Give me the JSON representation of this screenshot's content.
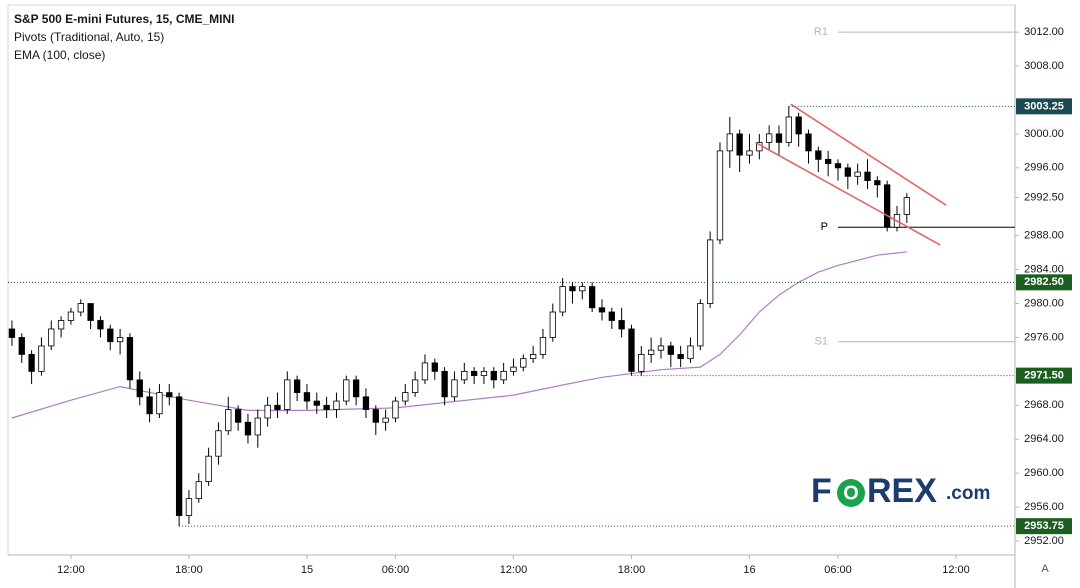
{
  "chart_data": {
    "type": "candlestick",
    "title": "S&P 500 E-mini Futures, 15, CME_MINI",
    "indicators": [
      "Pivots (Traditional, Auto, 15)",
      "EMA (100, close)"
    ],
    "x": [
      -6,
      -5,
      -4,
      -3,
      -2,
      -1,
      0,
      1,
      2,
      3,
      4,
      5,
      6,
      7,
      8,
      9,
      10,
      11,
      12,
      13,
      14,
      15,
      16,
      17,
      18,
      19,
      20,
      21,
      22,
      23,
      24,
      25,
      26,
      27,
      28,
      29,
      30,
      31,
      32,
      33,
      34,
      35,
      36,
      37,
      38,
      39,
      40,
      41,
      42,
      43,
      44,
      45,
      46,
      47,
      48,
      49,
      50,
      51,
      52,
      53,
      54,
      55,
      56,
      57,
      58,
      59,
      60,
      61,
      62,
      63,
      64,
      65,
      66,
      67,
      68,
      69,
      70,
      71,
      72,
      73,
      74,
      75,
      76,
      77,
      78,
      79,
      80,
      81,
      82,
      83,
      84,
      85
    ],
    "open": [
      2977,
      2976,
      2974,
      2972,
      2975,
      2977,
      2978,
      2979,
      2980,
      2978,
      2977,
      2975.5,
      2976,
      2971,
      2969,
      2967,
      2969.5,
      2969,
      2955,
      2957,
      2959,
      2962,
      2965,
      2967.5,
      2966,
      2964.5,
      2966.5,
      2968,
      2967.5,
      2971,
      2969.5,
      2968.5,
      2968,
      2967.5,
      2968.5,
      2971,
      2969,
      2967.5,
      2966,
      2966.5,
      2968.5,
      2969.5,
      2971,
      2973,
      2972,
      2969,
      2971,
      2972,
      2971.5,
      2972,
      2971,
      2972,
      2972.5,
      2973.5,
      2974,
      2976,
      2979,
      2982,
      2981.5,
      2982,
      2979.5,
      2979,
      2978,
      2977,
      2972,
      2974,
      2974.5,
      2975,
      2974,
      2973.5,
      2975,
      2980,
      2987.5,
      2998,
      3000,
      2997.5,
      2998,
      2999,
      3000,
      2999,
      3002,
      3000,
      2998,
      2997,
      2996.5,
      2996,
      2995,
      2995.5,
      2994.5,
      2994,
      2989,
      2990.5
    ],
    "high": [
      2978,
      2976.5,
      2974.5,
      2976,
      2978,
      2978.5,
      2979.5,
      2980.5,
      2980,
      2978.5,
      2977.5,
      2977,
      2976.5,
      2972,
      2970,
      2970.5,
      2970.5,
      2969.5,
      2958,
      2960,
      2963,
      2966,
      2969,
      2968,
      2967,
      2967.5,
      2969,
      2969.5,
      2972,
      2971.5,
      2970.5,
      2969.5,
      2969,
      2969.5,
      2971.5,
      2971.5,
      2970,
      2968,
      2967.5,
      2969,
      2970.5,
      2972,
      2974,
      2973.5,
      2972.5,
      2972,
      2973,
      2972.5,
      2972.5,
      2972.5,
      2973,
      2973.5,
      2974,
      2975,
      2977,
      2980,
      2983,
      2982.5,
      2982.5,
      2982.5,
      2980.5,
      2979.5,
      2979.5,
      2977.5,
      2975,
      2976,
      2976,
      2975.5,
      2975,
      2976,
      2980.5,
      2988.5,
      2999,
      3002,
      3000.5,
      3000,
      3000,
      3001,
      3001,
      3003.25,
      3002.5,
      3000.5,
      2998.5,
      2998,
      2997,
      2996.5,
      2996.5,
      2997,
      2995,
      2994.5,
      2991.5,
      2993
    ],
    "low": [
      2975,
      2973,
      2970.5,
      2971.5,
      2974.5,
      2976,
      2977.5,
      2978.5,
      2977,
      2976,
      2974.5,
      2974,
      2970,
      2968,
      2966,
      2966.5,
      2968,
      2953.75,
      2954,
      2956.5,
      2958.5,
      2961,
      2964.5,
      2965,
      2963.5,
      2963,
      2965.5,
      2966.5,
      2967,
      2968.5,
      2967.5,
      2967,
      2966.5,
      2966.5,
      2968,
      2968,
      2966.5,
      2964.5,
      2965,
      2966,
      2968,
      2969,
      2970.5,
      2971,
      2968,
      2968.5,
      2970.5,
      2970.5,
      2970.5,
      2970,
      2970.5,
      2971.5,
      2972,
      2973,
      2973.5,
      2975.5,
      2978.5,
      2980,
      2980.5,
      2979,
      2978,
      2977,
      2976,
      2971.5,
      2971.5,
      2973,
      2973.5,
      2972.5,
      2972.5,
      2973,
      2974.5,
      2979.5,
      2987,
      2996,
      2995.5,
      2996.5,
      2997,
      2998,
      2997.5,
      2998.5,
      2998.5,
      2996.5,
      2995.5,
      2995,
      2994.5,
      2993.5,
      2994,
      2993.5,
      2992.5,
      2988.5,
      2988.5,
      2989.5
    ],
    "close": [
      2976,
      2974,
      2972,
      2975,
      2977,
      2978,
      2979,
      2980,
      2978,
      2977,
      2975.5,
      2976,
      2971,
      2969,
      2967,
      2969.5,
      2969,
      2955,
      2957,
      2959,
      2962,
      2965,
      2967.5,
      2966,
      2964.5,
      2966.5,
      2968,
      2967.5,
      2971,
      2969.5,
      2968.5,
      2968,
      2967.5,
      2968.5,
      2971,
      2969,
      2967.5,
      2966,
      2966.5,
      2968.5,
      2969.5,
      2971,
      2973,
      2972,
      2969,
      2971,
      2972,
      2971.5,
      2972,
      2971,
      2972,
      2972.5,
      2973.5,
      2974,
      2976,
      2979,
      2982,
      2981.5,
      2982,
      2979.5,
      2979,
      2978,
      2977,
      2972,
      2974,
      2974.5,
      2975,
      2974,
      2973.5,
      2975,
      2980,
      2987.5,
      2998,
      3000,
      2997.5,
      2998,
      2999,
      3000,
      2999,
      3002,
      3000,
      2998,
      2997,
      2996.5,
      2996,
      2995,
      2995.5,
      2994.5,
      2994,
      2989,
      2990.5,
      2992.5
    ],
    "up_color": "#ffffff",
    "down_color": "#000000",
    "outline_color": "#000000",
    "ema": {
      "color": "#b07cc6",
      "x": [
        -6,
        0,
        5,
        12,
        18,
        24,
        33,
        45,
        50,
        54,
        60,
        64,
        66,
        68,
        70,
        72,
        74,
        76,
        78,
        80,
        82,
        85
      ],
      "values": [
        2966.5,
        2968.6,
        2970.2,
        2968.6,
        2967.4,
        2967.4,
        2967.7,
        2969.2,
        2970.4,
        2971.3,
        2972.2,
        2972.5,
        2974,
        2976.3,
        2979,
        2981,
        2982.5,
        2983.7,
        2984.5,
        2985.1,
        2985.7,
        2986.1
      ]
    },
    "pivots": [
      {
        "label": "R1",
        "value": 3012,
        "x_start": 78,
        "color": "#b2b5be"
      },
      {
        "label": "P",
        "value": 2989,
        "x_start": 78,
        "color": "#000000"
      },
      {
        "label": "S1",
        "value": 2975.5,
        "x_start": 78,
        "color": "#b2b5be"
      }
    ],
    "levels": [
      {
        "value": 3003.25,
        "label": "3003.25",
        "x_start": 73,
        "color": "#1c4a54"
      },
      {
        "value": 2982.5,
        "label": "2982.50",
        "x_start": -6.4,
        "color": "#1b5e20"
      },
      {
        "value": 2971.5,
        "label": "2971.50",
        "x_start": 57,
        "color": "#1b5e20"
      },
      {
        "value": 2953.75,
        "label": "2953.75",
        "x_start": 11,
        "color": "#1b5e20"
      }
    ],
    "trendlines": [
      {
        "x": [
          73.2,
          89
        ],
        "y": [
          3003.5,
          2991.6
        ],
        "color": "#e06666"
      },
      {
        "x": [
          69.6,
          88.4
        ],
        "y": [
          2999,
          2986.9
        ],
        "color": "#e06666"
      }
    ],
    "xlim": [
      -6.4,
      96
    ],
    "xticks": [
      {
        "value": 0,
        "label": "12:00"
      },
      {
        "value": 12,
        "label": "18:00"
      },
      {
        "value": 24,
        "label": "15"
      },
      {
        "value": 33,
        "label": "06:00"
      },
      {
        "value": 45,
        "label": "12:00"
      },
      {
        "value": 57,
        "label": "18:00"
      },
      {
        "value": 69,
        "label": "16"
      },
      {
        "value": 78,
        "label": "06:00"
      },
      {
        "value": 90,
        "label": "12:00"
      }
    ],
    "ylim": [
      2950.35,
      3015.2
    ],
    "yticks": [
      {
        "value": 3012,
        "label": "3012.00"
      },
      {
        "value": 3008,
        "label": "3008.00"
      },
      {
        "value": 3000,
        "label": "3000.00"
      },
      {
        "value": 2996,
        "label": "2996.00"
      },
      {
        "value": 2992.5,
        "label": "2992.50"
      },
      {
        "value": 2988,
        "label": "2988.00"
      },
      {
        "value": 2984,
        "label": "2984.00"
      },
      {
        "value": 2980,
        "label": "2980.00"
      },
      {
        "value": 2976,
        "label": "2976.00"
      },
      {
        "value": 2968,
        "label": "2968.00"
      },
      {
        "value": 2964,
        "label": "2964.00"
      },
      {
        "value": 2960,
        "label": "2960.00"
      },
      {
        "value": 2956,
        "label": "2956.00"
      },
      {
        "value": 2952,
        "label": "2952.00"
      }
    ],
    "grid": false,
    "logo": [
      "F",
      "O",
      "REX",
      ".com"
    ],
    "scale_button": "A"
  }
}
